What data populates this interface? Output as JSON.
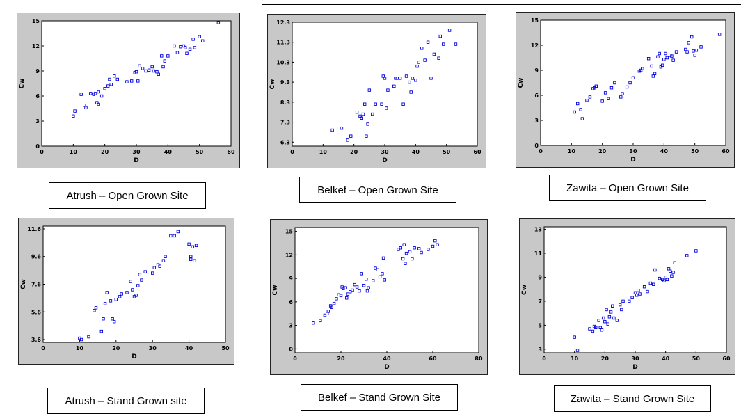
{
  "charts": [
    {
      "caption": "Atrush – Open Grown Site",
      "chart_data": {
        "type": "scatter",
        "xlabel": "D",
        "ylabel": "Cw",
        "xlim": [
          0,
          60
        ],
        "ylim": [
          0,
          15
        ],
        "xticks": [
          "0",
          "10",
          "20",
          "30",
          "40",
          "50",
          "60"
        ],
        "yticks": [
          "0",
          "3",
          "6",
          "9",
          "12",
          "15"
        ],
        "points": [
          [
            10,
            3.6
          ],
          [
            10.5,
            4.2
          ],
          [
            12.5,
            6.2
          ],
          [
            13.5,
            4.9
          ],
          [
            14,
            4.6
          ],
          [
            15.5,
            6.3
          ],
          [
            16.5,
            6.2
          ],
          [
            17,
            6.3
          ],
          [
            17.5,
            5.2
          ],
          [
            18,
            6.5
          ],
          [
            18,
            5
          ],
          [
            19,
            6
          ],
          [
            20,
            6.9
          ],
          [
            21,
            7.2
          ],
          [
            21.5,
            8
          ],
          [
            22,
            7.4
          ],
          [
            23,
            8.4
          ],
          [
            24,
            8
          ],
          [
            27,
            7.7
          ],
          [
            28.5,
            7.8
          ],
          [
            29.5,
            8.8
          ],
          [
            30,
            8.9
          ],
          [
            30.5,
            7.8
          ],
          [
            31,
            9.6
          ],
          [
            32,
            9.3
          ],
          [
            33,
            9
          ],
          [
            34,
            9.1
          ],
          [
            35,
            9.5
          ],
          [
            35.5,
            9
          ],
          [
            36.5,
            8.9
          ],
          [
            37,
            8.6
          ],
          [
            38,
            10.8
          ],
          [
            38.5,
            9.5
          ],
          [
            39,
            10.2
          ],
          [
            40,
            10.8
          ],
          [
            42,
            12
          ],
          [
            43,
            11.2
          ],
          [
            44,
            11.9
          ],
          [
            45,
            12
          ],
          [
            45.5,
            11.8
          ],
          [
            46,
            11.1
          ],
          [
            47,
            11.6
          ],
          [
            48,
            12.8
          ],
          [
            48.5,
            11.8
          ],
          [
            50,
            13.1
          ],
          [
            51,
            12.6
          ],
          [
            56,
            14.8
          ]
        ]
      }
    },
    {
      "caption": "Belkef – Open Grown Site",
      "chart_data": {
        "type": "scatter",
        "xlabel": "D",
        "ylabel": "Cw",
        "xlim": [
          0,
          60
        ],
        "ylim": [
          6.1,
          12.3
        ],
        "xticks": [
          "0",
          "10",
          "20",
          "30",
          "40",
          "50",
          "60"
        ],
        "yticks": [
          "6.3",
          "7.3",
          "8.3",
          "9.3",
          "10.3",
          "11.3",
          "12.3"
        ],
        "points": [
          [
            13,
            6.9
          ],
          [
            16,
            7
          ],
          [
            18,
            6.4
          ],
          [
            19,
            6.6
          ],
          [
            21,
            7.8
          ],
          [
            22,
            7.6
          ],
          [
            22.5,
            7.5
          ],
          [
            23,
            7.7
          ],
          [
            23.5,
            8.2
          ],
          [
            24,
            6.6
          ],
          [
            24.5,
            7.2
          ],
          [
            25,
            8.9
          ],
          [
            26,
            7.7
          ],
          [
            27,
            8.2
          ],
          [
            29,
            8.2
          ],
          [
            29.5,
            9.6
          ],
          [
            30,
            9.5
          ],
          [
            30.5,
            8
          ],
          [
            31,
            8.9
          ],
          [
            33,
            9.1
          ],
          [
            33.5,
            9.5
          ],
          [
            34,
            9.5
          ],
          [
            35,
            9.5
          ],
          [
            36,
            8.2
          ],
          [
            37,
            9.6
          ],
          [
            38,
            9.3
          ],
          [
            38.5,
            8.8
          ],
          [
            39,
            9.5
          ],
          [
            40,
            9.4
          ],
          [
            40.5,
            10.1
          ],
          [
            41,
            10.3
          ],
          [
            42,
            11
          ],
          [
            43,
            10.4
          ],
          [
            44,
            11.3
          ],
          [
            45,
            9.5
          ],
          [
            46,
            10.7
          ],
          [
            47.5,
            10.5
          ],
          [
            48,
            11.6
          ],
          [
            49,
            11.2
          ],
          [
            51,
            11.9
          ],
          [
            53,
            11.2
          ]
        ]
      }
    },
    {
      "caption": "Zawita – Open Grown Site",
      "chart_data": {
        "type": "scatter",
        "xlabel": "D",
        "ylabel": "Cw",
        "xlim": [
          0,
          60
        ],
        "ylim": [
          0,
          15
        ],
        "xticks": [
          "0",
          "10",
          "20",
          "30",
          "40",
          "50",
          "60"
        ],
        "yticks": [
          "0",
          "3",
          "6",
          "9",
          "12",
          "15"
        ],
        "points": [
          [
            11,
            4
          ],
          [
            12,
            5
          ],
          [
            13,
            4.3
          ],
          [
            13.5,
            3.2
          ],
          [
            15,
            5.4
          ],
          [
            16,
            5.8
          ],
          [
            17,
            6.8
          ],
          [
            17.5,
            6.9
          ],
          [
            18,
            7.1
          ],
          [
            20,
            5.3
          ],
          [
            21,
            6.3
          ],
          [
            22,
            5.6
          ],
          [
            23,
            6.9
          ],
          [
            24,
            7.5
          ],
          [
            26,
            5.8
          ],
          [
            26.5,
            6.2
          ],
          [
            28,
            7
          ],
          [
            29,
            7.5
          ],
          [
            30,
            8.1
          ],
          [
            32,
            8.9
          ],
          [
            32.5,
            9
          ],
          [
            33,
            9.2
          ],
          [
            35,
            10.4
          ],
          [
            36,
            9.5
          ],
          [
            36.5,
            8.3
          ],
          [
            37,
            8.6
          ],
          [
            38,
            10.6
          ],
          [
            38.5,
            11
          ],
          [
            39,
            9.4
          ],
          [
            39.5,
            9.6
          ],
          [
            40,
            10.3
          ],
          [
            40.5,
            11
          ],
          [
            41,
            10.5
          ],
          [
            42,
            10.8
          ],
          [
            42.5,
            10.7
          ],
          [
            43,
            10.2
          ],
          [
            44,
            11.2
          ],
          [
            47,
            11.5
          ],
          [
            47.5,
            11.2
          ],
          [
            48,
            12.3
          ],
          [
            49,
            13
          ],
          [
            49.5,
            11.3
          ],
          [
            50,
            10.8
          ],
          [
            50.5,
            11.4
          ],
          [
            52,
            11.8
          ],
          [
            58,
            13.3
          ]
        ]
      }
    },
    {
      "caption": "Atrush – Stand Grown site",
      "chart_data": {
        "type": "scatter",
        "xlabel": "D",
        "ylabel": "Cw",
        "xlim": [
          0,
          50
        ],
        "ylim": [
          3.4,
          11.8
        ],
        "xticks": [
          "0",
          "10",
          "20",
          "30",
          "40",
          "50"
        ],
        "yticks": [
          "3.6",
          "5.6",
          "7.6",
          "9.6",
          "11.6"
        ],
        "points": [
          [
            10,
            3.7
          ],
          [
            10.5,
            3.6
          ],
          [
            12.5,
            3.8
          ],
          [
            14,
            5.7
          ],
          [
            14.5,
            5.9
          ],
          [
            16,
            4.2
          ],
          [
            16.5,
            5.1
          ],
          [
            17,
            6.2
          ],
          [
            17.5,
            7
          ],
          [
            18.5,
            6.4
          ],
          [
            19,
            5.1
          ],
          [
            19.5,
            4.9
          ],
          [
            20,
            6.5
          ],
          [
            21,
            6.7
          ],
          [
            21.5,
            6.9
          ],
          [
            23,
            7
          ],
          [
            24,
            7.8
          ],
          [
            24.5,
            7.2
          ],
          [
            25,
            6.7
          ],
          [
            25.5,
            6.8
          ],
          [
            26,
            7.5
          ],
          [
            26.5,
            8.3
          ],
          [
            27,
            7.9
          ],
          [
            28,
            8.5
          ],
          [
            30,
            8.4
          ],
          [
            30.5,
            8.8
          ],
          [
            31.5,
            9
          ],
          [
            32,
            8.9
          ],
          [
            33,
            9.3
          ],
          [
            33.5,
            9.6
          ],
          [
            35,
            11.1
          ],
          [
            36,
            11.1
          ],
          [
            37,
            11.4
          ],
          [
            40,
            10.5
          ],
          [
            40.5,
            9.6
          ],
          [
            41,
            10.3
          ],
          [
            41.5,
            9.3
          ],
          [
            42,
            10.4
          ],
          [
            40.5,
            9.4
          ]
        ]
      }
    },
    {
      "caption": "Belkef – Stand Grown Site",
      "chart_data": {
        "type": "scatter",
        "xlabel": "D",
        "ylabel": "Cw",
        "xlim": [
          0,
          80
        ],
        "ylim": [
          -0.5,
          15.5
        ],
        "xticks": [
          "0",
          "20",
          "40",
          "60",
          "80"
        ],
        "yticks": [
          "0",
          "3",
          "6",
          "9",
          "12",
          "15"
        ],
        "points": [
          [
            8,
            3.3
          ],
          [
            11,
            3.6
          ],
          [
            13,
            4.3
          ],
          [
            14,
            4.5
          ],
          [
            14.5,
            4.8
          ],
          [
            15.5,
            5.5
          ],
          [
            16,
            5.3
          ],
          [
            17,
            5.8
          ],
          [
            18,
            6.4
          ],
          [
            19,
            6.9
          ],
          [
            20,
            6.8
          ],
          [
            20.5,
            7.9
          ],
          [
            21,
            7.7
          ],
          [
            22,
            7.8
          ],
          [
            22.5,
            6.5
          ],
          [
            23,
            7
          ],
          [
            24,
            7.3
          ],
          [
            25,
            7.5
          ],
          [
            26,
            8.2
          ],
          [
            27,
            7.9
          ],
          [
            28,
            7.4
          ],
          [
            29,
            9.6
          ],
          [
            30,
            8.1
          ],
          [
            31,
            8.9
          ],
          [
            31.5,
            7.4
          ],
          [
            32,
            7.8
          ],
          [
            34,
            8.7
          ],
          [
            35,
            10.3
          ],
          [
            36,
            10.1
          ],
          [
            37,
            9.2
          ],
          [
            38,
            9.6
          ],
          [
            38.5,
            11.6
          ],
          [
            39,
            8.8
          ],
          [
            45,
            12.7
          ],
          [
            46,
            12.9
          ],
          [
            47,
            11.5
          ],
          [
            47.5,
            13.3
          ],
          [
            48,
            10.9
          ],
          [
            48.5,
            12.2
          ],
          [
            50,
            12.4
          ],
          [
            51,
            11.5
          ],
          [
            52,
            12.9
          ],
          [
            54,
            12.8
          ],
          [
            55,
            12.3
          ],
          [
            58,
            12.7
          ],
          [
            60,
            13.1
          ],
          [
            61,
            13.8
          ],
          [
            62,
            13.3
          ]
        ]
      }
    },
    {
      "caption": "Zawita – Stand Grown Site",
      "chart_data": {
        "type": "scatter",
        "xlabel": "D",
        "ylabel": "Cw",
        "xlim": [
          0,
          60
        ],
        "ylim": [
          2.7,
          13.2
        ],
        "xticks": [
          "0",
          "10",
          "20",
          "30",
          "40",
          "50",
          "60"
        ],
        "yticks": [
          "3",
          "5",
          "7",
          "9",
          "11",
          "13"
        ],
        "points": [
          [
            10,
            4
          ],
          [
            11,
            2.9
          ],
          [
            15,
            4.7
          ],
          [
            16,
            4.5
          ],
          [
            16.5,
            4.9
          ],
          [
            17,
            4.8
          ],
          [
            18,
            5.4
          ],
          [
            18.5,
            4.8
          ],
          [
            19,
            4.6
          ],
          [
            19.5,
            5.6
          ],
          [
            20,
            5.3
          ],
          [
            20.5,
            6.3
          ],
          [
            21,
            5.1
          ],
          [
            21.5,
            5.7
          ],
          [
            22,
            6.1
          ],
          [
            22.5,
            6.6
          ],
          [
            23,
            5.6
          ],
          [
            24,
            5.4
          ],
          [
            25,
            6.7
          ],
          [
            25.5,
            6.3
          ],
          [
            26,
            7
          ],
          [
            28,
            7
          ],
          [
            29,
            7.3
          ],
          [
            30,
            7.7
          ],
          [
            30.5,
            7.5
          ],
          [
            31,
            7.9
          ],
          [
            31.5,
            7.6
          ],
          [
            33,
            8.2
          ],
          [
            34,
            7.8
          ],
          [
            35,
            8.5
          ],
          [
            36,
            8.4
          ],
          [
            36.5,
            9.6
          ],
          [
            38,
            8.9
          ],
          [
            39,
            8.8
          ],
          [
            39.5,
            8.7
          ],
          [
            40,
            9
          ],
          [
            40.5,
            8.8
          ],
          [
            41,
            9.7
          ],
          [
            41.5,
            9.5
          ],
          [
            42,
            9.1
          ],
          [
            42.5,
            9.4
          ],
          [
            43,
            10.2
          ],
          [
            47,
            10.8
          ],
          [
            50,
            11.2
          ]
        ]
      }
    }
  ],
  "marker_color": "#0000dd",
  "panel_bg": "#c8c8c8",
  "plot_bg": "#ffffff"
}
